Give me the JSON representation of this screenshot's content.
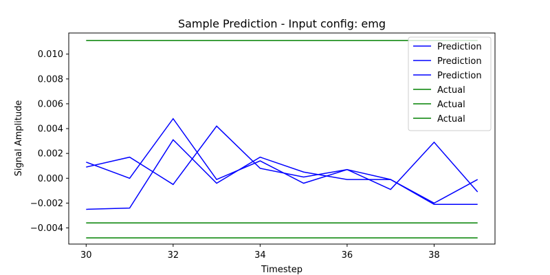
{
  "chart_data": {
    "type": "line",
    "title": "Sample Prediction - Input config: emg",
    "xlabel": "Timestep",
    "ylabel": "Signal Amplitude",
    "xlim": [
      29.6,
      39.4
    ],
    "ylim": [
      -0.0053,
      0.0117
    ],
    "x_ticks": [
      30,
      32,
      34,
      36,
      38
    ],
    "x_tick_labels": [
      "30",
      "32",
      "34",
      "36",
      "38"
    ],
    "y_ticks": [
      -0.004,
      -0.002,
      0.0,
      0.002,
      0.004,
      0.006,
      0.008,
      0.01
    ],
    "y_tick_labels": [
      "−0.004",
      "−0.002",
      "0.000",
      "0.002",
      "0.004",
      "0.006",
      "0.008",
      "0.010"
    ],
    "grid": false,
    "legend_position": "top-right",
    "x": [
      30,
      31,
      32,
      33,
      34,
      35,
      36,
      37,
      38,
      39
    ],
    "series": [
      {
        "name": "Prediction",
        "color": "#0000ff",
        "values": [
          0.0013,
          0.0,
          0.0048,
          -0.0001,
          0.0014,
          -0.0004,
          0.0007,
          -0.0001,
          -0.0021,
          -0.0021
        ]
      },
      {
        "name": "Prediction",
        "color": "#0000ff",
        "values": [
          0.0009,
          0.0017,
          -0.0005,
          0.0042,
          0.0008,
          0.0001,
          0.0007,
          -0.0009,
          0.0029,
          -0.0011
        ]
      },
      {
        "name": "Prediction",
        "color": "#0000ff",
        "values": [
          -0.0025,
          -0.0024,
          0.0031,
          -0.0004,
          0.0017,
          0.0005,
          -0.0001,
          -0.0001,
          -0.002,
          -0.0001
        ]
      },
      {
        "name": "Actual",
        "color": "#008000",
        "values": [
          0.0111,
          0.0111,
          0.0111,
          0.0111,
          0.0111,
          0.0111,
          0.0111,
          0.0111,
          0.0111,
          0.0111
        ]
      },
      {
        "name": "Actual",
        "color": "#008000",
        "values": [
          -0.0036,
          -0.0036,
          -0.0036,
          -0.0036,
          -0.0036,
          -0.0036,
          -0.0036,
          -0.0036,
          -0.0036,
          -0.0036
        ]
      },
      {
        "name": "Actual",
        "color": "#008000",
        "values": [
          -0.0048,
          -0.0048,
          -0.0048,
          -0.0048,
          -0.0048,
          -0.0048,
          -0.0048,
          -0.0048,
          -0.0048,
          -0.0048
        ]
      }
    ]
  }
}
